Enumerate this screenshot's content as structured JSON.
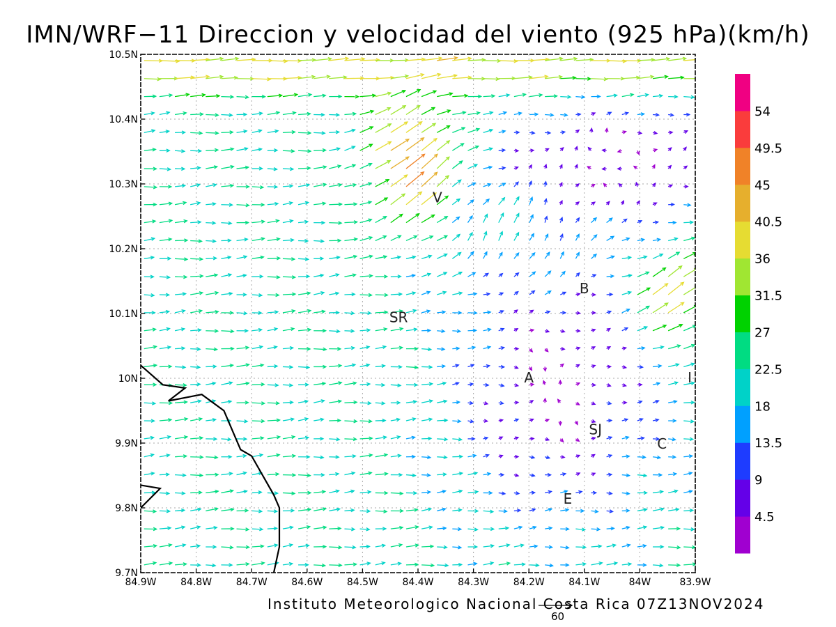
{
  "title": "IMN/WRF−11 Direccion y velocidad del viento (925 hPa)(km/h)",
  "footer": {
    "credit": "Instituto Meteorologico Nacional Costa Rica 07Z13NOV2024",
    "reference_vector_label": "60"
  },
  "map": {
    "lon_range": [
      -84.9,
      -83.9
    ],
    "lat_range": [
      9.7,
      10.5
    ],
    "grid": "dotted",
    "x_ticks": [
      {
        "value": -84.9,
        "label": "84.9W"
      },
      {
        "value": -84.8,
        "label": "84.8W"
      },
      {
        "value": -84.7,
        "label": "84.7W"
      },
      {
        "value": -84.6,
        "label": "84.6W"
      },
      {
        "value": -84.5,
        "label": "84.5W"
      },
      {
        "value": -84.4,
        "label": "84.4W"
      },
      {
        "value": -84.3,
        "label": "84.3W"
      },
      {
        "value": -84.2,
        "label": "84.2W"
      },
      {
        "value": -84.1,
        "label": "84.1W"
      },
      {
        "value": -84.0,
        "label": "84W"
      },
      {
        "value": -83.9,
        "label": "83.9W"
      }
    ],
    "y_ticks": [
      {
        "value": 9.7,
        "label": "9.7N"
      },
      {
        "value": 9.8,
        "label": "9.8N"
      },
      {
        "value": 9.9,
        "label": "9.9N"
      },
      {
        "value": 10.0,
        "label": "10N"
      },
      {
        "value": 10.1,
        "label": "10.1N"
      },
      {
        "value": 10.2,
        "label": "10.2N"
      },
      {
        "value": 10.3,
        "label": "10.3N"
      },
      {
        "value": 10.4,
        "label": "10.4N"
      },
      {
        "value": 10.5,
        "label": "10.5N"
      }
    ],
    "place_labels": [
      {
        "name": "V",
        "lon": -84.365,
        "lat": 10.28
      },
      {
        "name": "SR",
        "lon": -84.435,
        "lat": 10.095
      },
      {
        "name": "B",
        "lon": -84.1,
        "lat": 10.14
      },
      {
        "name": "A",
        "lon": -84.2,
        "lat": 10.002
      },
      {
        "name": "I",
        "lon": -83.91,
        "lat": 10.002
      },
      {
        "name": "SJ",
        "lon": -84.08,
        "lat": 9.922
      },
      {
        "name": "C",
        "lon": -83.96,
        "lat": 9.9
      },
      {
        "name": "E",
        "lon": -84.13,
        "lat": 9.815
      }
    ],
    "coastline": [
      [
        -84.9,
        10.02
      ],
      [
        -84.86,
        9.99
      ],
      [
        -84.82,
        9.985
      ],
      [
        -84.85,
        9.965
      ],
      [
        -84.79,
        9.975
      ],
      [
        -84.75,
        9.95
      ],
      [
        -84.73,
        9.91
      ],
      [
        -84.72,
        9.89
      ],
      [
        -84.7,
        9.88
      ],
      [
        -84.68,
        9.85
      ],
      [
        -84.66,
        9.82
      ],
      [
        -84.65,
        9.8
      ],
      [
        -84.65,
        9.77
      ],
      [
        -84.65,
        9.74
      ],
      [
        -84.66,
        9.7
      ]
    ],
    "coastline_2": [
      [
        -84.9,
        9.8
      ],
      [
        -84.865,
        9.83
      ],
      [
        -84.9,
        9.835
      ]
    ]
  },
  "colorbar": {
    "colors": [
      "#a000d0",
      "#6400e8",
      "#1e3cff",
      "#00a0ff",
      "#00d2c8",
      "#00dc82",
      "#00d200",
      "#a0e632",
      "#e6dc32",
      "#e6af2d",
      "#f08228",
      "#fa3c3c",
      "#f00082"
    ],
    "labels": [
      "4.5",
      "9",
      "13.5",
      "18",
      "22.5",
      "27",
      "31.5",
      "36",
      "40.5",
      "45",
      "49.5",
      "54"
    ]
  }
}
